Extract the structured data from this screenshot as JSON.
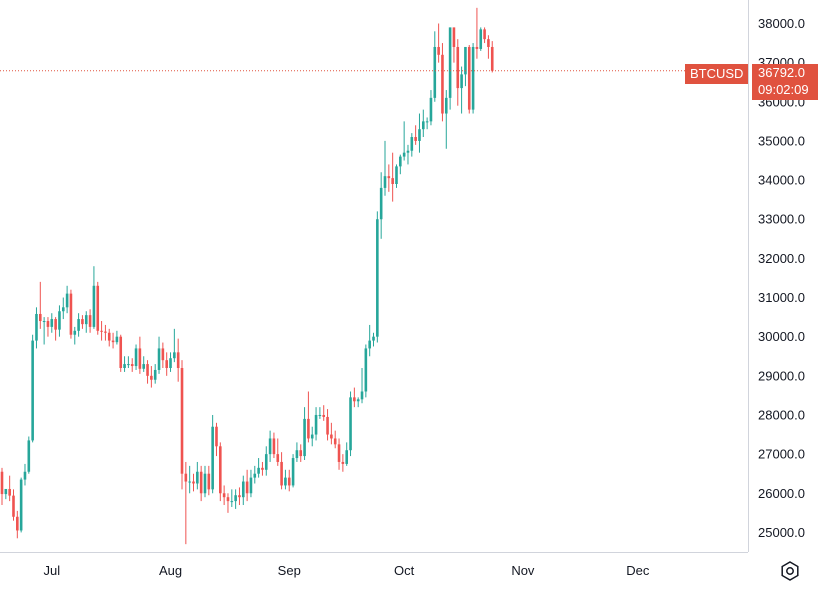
{
  "chart_data": {
    "type": "candlestick",
    "symbol": "BTCUSD",
    "last_price": "36792.0",
    "countdown": "09:02:09",
    "ylim": [
      24500,
      38600
    ],
    "y_ticks": [
      "25000.0",
      "26000.0",
      "27000.0",
      "28000.0",
      "29000.0",
      "30000.0",
      "31000.0",
      "32000.0",
      "33000.0",
      "34000.0",
      "35000.0",
      "36000.0",
      "37000.0",
      "38000.0"
    ],
    "x_ticks": [
      "Jul",
      "Aug",
      "Sep",
      "Oct",
      "Nov",
      "Dec"
    ],
    "x_tick_days": [
      13,
      44,
      75,
      105,
      136,
      166
    ],
    "colors": {
      "up": "#26a69a",
      "down": "#ef5350",
      "last_price": "#e0523f",
      "grid_line": "#e0e3eb"
    },
    "candles": {
      "open": [
        26550,
        25980,
        26110,
        25940,
        25400,
        25050,
        26350,
        26550,
        27350,
        29900,
        30580,
        30400,
        30400,
        30250,
        30450,
        30180,
        30650,
        30750,
        31100,
        30050,
        30150,
        30450,
        30320,
        30550,
        30250,
        31300,
        30150,
        30130,
        30100,
        29900,
        29860,
        30000,
        29200,
        29300,
        29300,
        29250,
        29700,
        29180,
        29300,
        29000,
        28900,
        29150,
        29700,
        29400,
        29200,
        29450,
        29600,
        29200,
        26500,
        26300,
        26300,
        26250,
        26550,
        26000,
        26500,
        26100,
        27700,
        27200,
        26000,
        25900,
        25800,
        25800,
        25950,
        25900,
        26300,
        26000,
        26400,
        26500,
        26650,
        26600,
        27000,
        27400,
        27000,
        26800,
        26200,
        26400,
        26200,
        26900,
        27100,
        26950,
        27900,
        27400,
        27500,
        28000,
        28000,
        27950,
        27500,
        27400,
        27250,
        26800,
        26750,
        27100,
        28450,
        28350,
        28400,
        28600,
        29700,
        29900,
        30000,
        33000,
        33800,
        34100,
        34050,
        33900,
        34350,
        34600,
        34700,
        34750,
        35100,
        35000,
        35300,
        35500,
        35500,
        36100,
        37400,
        37200,
        35700,
        36100,
        37900,
        37400,
        36350,
        36700,
        37400,
        35800,
        37400,
        37350,
        37850,
        37600,
        37400
      ],
      "close": [
        25980,
        26110,
        25940,
        25400,
        25050,
        26350,
        26550,
        27350,
        29900,
        30580,
        30400,
        30400,
        30250,
        30450,
        30180,
        30650,
        30750,
        31100,
        30050,
        30150,
        30450,
        30320,
        30550,
        30250,
        31300,
        30150,
        30130,
        30100,
        29900,
        29860,
        30000,
        29200,
        29300,
        29300,
        29250,
        29700,
        29180,
        29300,
        29000,
        28900,
        29150,
        29700,
        29400,
        29200,
        29450,
        29600,
        29200,
        26500,
        26300,
        26300,
        26250,
        26550,
        26000,
        26500,
        26100,
        27700,
        27200,
        26000,
        25900,
        25800,
        25800,
        25950,
        25900,
        26300,
        26000,
        26400,
        26500,
        26650,
        26600,
        27000,
        27400,
        27000,
        26800,
        26200,
        26400,
        26200,
        26900,
        27100,
        26950,
        27900,
        27400,
        27500,
        28000,
        28000,
        27950,
        27500,
        27400,
        27250,
        26800,
        26750,
        27100,
        28450,
        28350,
        28400,
        28600,
        29700,
        29900,
        30000,
        33000,
        33800,
        34100,
        34050,
        33900,
        34350,
        34600,
        34700,
        34750,
        35100,
        35000,
        35300,
        35500,
        35500,
        36100,
        37400,
        37200,
        35700,
        36100,
        37900,
        37400,
        36350,
        36700,
        37400,
        35800,
        37400,
        37350,
        37850,
        37600,
        37400,
        36792
      ],
      "high": [
        26650,
        26100,
        26450,
        26100,
        25550,
        26400,
        26750,
        27450,
        30050,
        30750,
        31400,
        30500,
        30500,
        30600,
        30500,
        30800,
        31000,
        31300,
        31200,
        30250,
        30600,
        30550,
        30650,
        30700,
        31800,
        31400,
        30400,
        30300,
        30200,
        30100,
        30150,
        30050,
        29500,
        29500,
        29450,
        29800,
        30000,
        29500,
        29400,
        29250,
        29300,
        30000,
        29850,
        29600,
        29600,
        30200,
        29950,
        29400,
        26800,
        26700,
        26500,
        26800,
        26700,
        26700,
        26700,
        28000,
        27800,
        27300,
        26200,
        26000,
        26100,
        26100,
        26150,
        26450,
        26600,
        26600,
        26700,
        26900,
        26800,
        27200,
        27600,
        27550,
        27400,
        27050,
        26600,
        26600,
        27000,
        27300,
        27250,
        28200,
        28600,
        27700,
        28200,
        28200,
        28250,
        28150,
        27800,
        27600,
        27400,
        27000,
        27300,
        28600,
        28700,
        28450,
        29200,
        29800,
        30300,
        30100,
        33200,
        34200,
        35000,
        34400,
        34700,
        34400,
        34650,
        35500,
        34900,
        35200,
        35400,
        35700,
        35800,
        35600,
        36300,
        37800,
        38000,
        37500,
        36300,
        37900,
        37900,
        37600,
        36900,
        37400,
        37450,
        37500,
        38400,
        37900,
        37900,
        37700,
        37550
      ],
      "low": [
        25700,
        25850,
        25800,
        25300,
        24850,
        25000,
        26200,
        26500,
        27300,
        29700,
        30200,
        29800,
        30000,
        30100,
        29900,
        30000,
        30450,
        30600,
        29950,
        29800,
        30000,
        30200,
        30100,
        30100,
        30200,
        30050,
        29900,
        29900,
        29750,
        29700,
        29800,
        29100,
        29100,
        29200,
        29100,
        29150,
        29050,
        29100,
        28800,
        28700,
        28800,
        29050,
        29200,
        29000,
        29100,
        29350,
        28850,
        26100,
        24700,
        26000,
        26050,
        26100,
        25800,
        25900,
        25950,
        26000,
        26950,
        25800,
        25700,
        25500,
        25650,
        25600,
        25700,
        25700,
        25800,
        25900,
        26250,
        26400,
        26450,
        26450,
        26800,
        26900,
        26700,
        26100,
        26100,
        26050,
        26150,
        26800,
        26800,
        26850,
        27300,
        27200,
        27350,
        27900,
        27850,
        27350,
        27250,
        27150,
        26600,
        26550,
        26700,
        26950,
        28200,
        28200,
        28300,
        28450,
        29500,
        29750,
        29850,
        32500,
        33600,
        33700,
        33450,
        33800,
        34150,
        34500,
        34400,
        34600,
        34900,
        34700,
        35100,
        35300,
        35400,
        36000,
        37000,
        35500,
        34800,
        35800,
        37000,
        35900,
        35700,
        36400,
        35700,
        35700,
        37100,
        37300,
        37500,
        37100,
        36750
      ]
    }
  }
}
